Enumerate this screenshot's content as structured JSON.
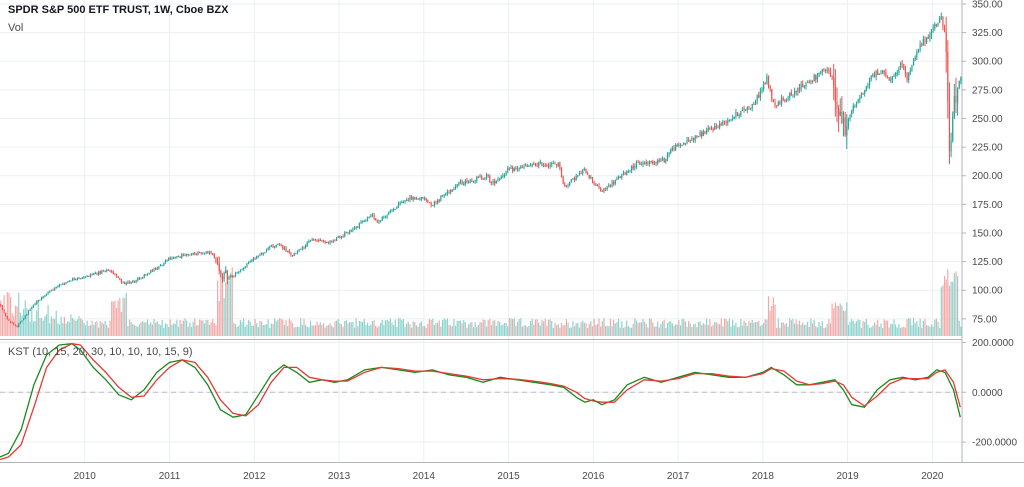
{
  "header": {
    "title": "SPDR S&P 500 ETF TRUST, 1W, Cboe BZX",
    "volume_label": "Vol"
  },
  "indicator": {
    "label": "KST (10, 15, 20, 30, 10, 10, 10, 15, 9)"
  },
  "colors": {
    "up": "#26a69a",
    "down": "#ef5350",
    "up_volume": "#8ed3ce",
    "down_volume": "#f3aaa8",
    "kst_line": "#1a8a1a",
    "signal_line": "#e53935",
    "grid": "#eceff2",
    "axis_text": "#4a4a4a"
  },
  "chart_data": [
    {
      "type": "candlestick",
      "title": "SPDR S&P 500 ETF TRUST, 1W, Cboe BZX",
      "x_range": [
        2009.0,
        2020.35
      ],
      "x_ticks": [
        2010,
        2011,
        2012,
        2013,
        2014,
        2015,
        2016,
        2017,
        2018,
        2019,
        2020
      ],
      "x_tick_labels": [
        "2010",
        "2011",
        "2012",
        "2013",
        "2014",
        "2015",
        "2016",
        "2017",
        "2018",
        "2019",
        "2020"
      ],
      "ylim": [
        60,
        350
      ],
      "y_ticks": [
        75,
        100,
        125,
        150,
        175,
        200,
        225,
        250,
        275,
        300,
        325,
        350
      ],
      "y_tick_labels": [
        "75.00",
        "100.00",
        "125.00",
        "150.00",
        "175.00",
        "200.00",
        "225.00",
        "250.00",
        "275.00",
        "300.00",
        "325.00",
        "350.00"
      ],
      "price_path": {
        "x": [
          2009.0,
          2009.08,
          2009.2,
          2009.4,
          2009.6,
          2009.8,
          2010.0,
          2010.3,
          2010.45,
          2010.6,
          2010.9,
          2011.0,
          2011.3,
          2011.5,
          2011.6,
          2011.75,
          2011.9,
          2012.2,
          2012.3,
          2012.45,
          2012.7,
          2012.9,
          2013.0,
          2013.4,
          2013.45,
          2013.6,
          2013.8,
          2014.0,
          2014.1,
          2014.4,
          2014.75,
          2014.8,
          2015.0,
          2015.35,
          2015.6,
          2015.65,
          2015.9,
          2016.05,
          2016.1,
          2016.5,
          2016.85,
          2016.9,
          2017.0,
          2017.5,
          2017.9,
          2018.05,
          2018.1,
          2018.15,
          2018.3,
          2018.7,
          2018.78,
          2018.85,
          2018.95,
          2019.0,
          2019.3,
          2019.4,
          2019.5,
          2019.65,
          2019.7,
          2019.85,
          2020.0,
          2020.1,
          2020.15,
          2020.2,
          2020.25,
          2020.3,
          2020.35
        ],
        "price": [
          88,
          75,
          68,
          88,
          100,
          108,
          112,
          118,
          106,
          108,
          122,
          128,
          132,
          133,
          115,
          112,
          122,
          138,
          140,
          130,
          145,
          142,
          146,
          165,
          160,
          168,
          180,
          180,
          175,
          193,
          200,
          193,
          205,
          210,
          210,
          190,
          205,
          190,
          186,
          210,
          214,
          222,
          226,
          245,
          263,
          285,
          270,
          262,
          270,
          290,
          292,
          270,
          245,
          250,
          288,
          290,
          285,
          298,
          285,
          312,
          328,
          338,
          325,
          225,
          252,
          282,
          290
        ]
      },
      "volume_axis_max_label": "",
      "legend": [
        "Vol"
      ]
    },
    {
      "type": "line",
      "title": "KST (10, 15, 20, 30, 10, 10, 10, 15, 9)",
      "ylim": [
        -280,
        210
      ],
      "y_ticks": [
        200,
        0,
        -200
      ],
      "y_tick_labels": [
        "200.0000",
        "0.0000",
        "-200.0000"
      ],
      "series": [
        {
          "name": "KST",
          "x": [
            2009.0,
            2009.1,
            2009.25,
            2009.4,
            2009.55,
            2009.7,
            2009.85,
            2009.95,
            2010.1,
            2010.25,
            2010.4,
            2010.55,
            2010.7,
            2010.85,
            2011.0,
            2011.15,
            2011.3,
            2011.45,
            2011.6,
            2011.75,
            2011.9,
            2012.05,
            2012.2,
            2012.35,
            2012.5,
            2012.65,
            2012.8,
            2012.95,
            2013.1,
            2013.3,
            2013.5,
            2013.7,
            2013.9,
            2014.1,
            2014.3,
            2014.5,
            2014.7,
            2014.9,
            2015.1,
            2015.3,
            2015.5,
            2015.65,
            2015.8,
            2015.9,
            2016.0,
            2016.1,
            2016.25,
            2016.4,
            2016.6,
            2016.8,
            2017.0,
            2017.2,
            2017.4,
            2017.6,
            2017.8,
            2018.0,
            2018.1,
            2018.25,
            2018.4,
            2018.55,
            2018.7,
            2018.85,
            2018.95,
            2019.05,
            2019.2,
            2019.35,
            2019.5,
            2019.65,
            2019.8,
            2019.95,
            2020.05,
            2020.15,
            2020.25,
            2020.33
          ],
          "values": [
            -260,
            -245,
            -150,
            30,
            150,
            190,
            195,
            170,
            100,
            50,
            -10,
            -30,
            10,
            80,
            120,
            130,
            100,
            30,
            -70,
            -100,
            -90,
            -10,
            70,
            110,
            80,
            40,
            50,
            40,
            50,
            90,
            100,
            90,
            80,
            90,
            70,
            60,
            40,
            60,
            50,
            40,
            30,
            20,
            -20,
            -40,
            -30,
            -50,
            -30,
            30,
            60,
            40,
            60,
            80,
            70,
            60,
            60,
            80,
            100,
            70,
            30,
            30,
            40,
            50,
            10,
            -50,
            -60,
            10,
            50,
            60,
            50,
            60,
            90,
            80,
            10,
            -100
          ]
        },
        {
          "name": "Signal",
          "x": [
            2009.0,
            2009.1,
            2009.25,
            2009.4,
            2009.55,
            2009.7,
            2009.85,
            2009.95,
            2010.1,
            2010.25,
            2010.4,
            2010.55,
            2010.7,
            2010.85,
            2011.0,
            2011.15,
            2011.3,
            2011.45,
            2011.6,
            2011.75,
            2011.9,
            2012.05,
            2012.2,
            2012.35,
            2012.5,
            2012.65,
            2012.8,
            2012.95,
            2013.1,
            2013.3,
            2013.5,
            2013.7,
            2013.9,
            2014.1,
            2014.3,
            2014.5,
            2014.7,
            2014.9,
            2015.1,
            2015.3,
            2015.5,
            2015.65,
            2015.8,
            2015.9,
            2016.0,
            2016.1,
            2016.25,
            2016.4,
            2016.6,
            2016.8,
            2017.0,
            2017.2,
            2017.4,
            2017.6,
            2017.8,
            2018.0,
            2018.1,
            2018.25,
            2018.4,
            2018.55,
            2018.7,
            2018.85,
            2018.95,
            2019.05,
            2019.2,
            2019.35,
            2019.5,
            2019.65,
            2019.8,
            2019.95,
            2020.05,
            2020.15,
            2020.25,
            2020.33
          ],
          "values": [
            -270,
            -260,
            -210,
            -60,
            100,
            170,
            195,
            190,
            130,
            80,
            20,
            -20,
            -15,
            50,
            100,
            130,
            120,
            60,
            -30,
            -85,
            -95,
            -50,
            40,
            100,
            100,
            60,
            50,
            45,
            45,
            80,
            100,
            95,
            85,
            85,
            75,
            65,
            50,
            55,
            52,
            45,
            35,
            25,
            0,
            -25,
            -35,
            -40,
            -40,
            10,
            50,
            45,
            55,
            75,
            75,
            65,
            60,
            75,
            95,
            85,
            45,
            30,
            35,
            45,
            30,
            -20,
            -55,
            -15,
            35,
            55,
            55,
            55,
            80,
            90,
            40,
            -60
          ]
        }
      ],
      "zero_line": 0
    }
  ]
}
